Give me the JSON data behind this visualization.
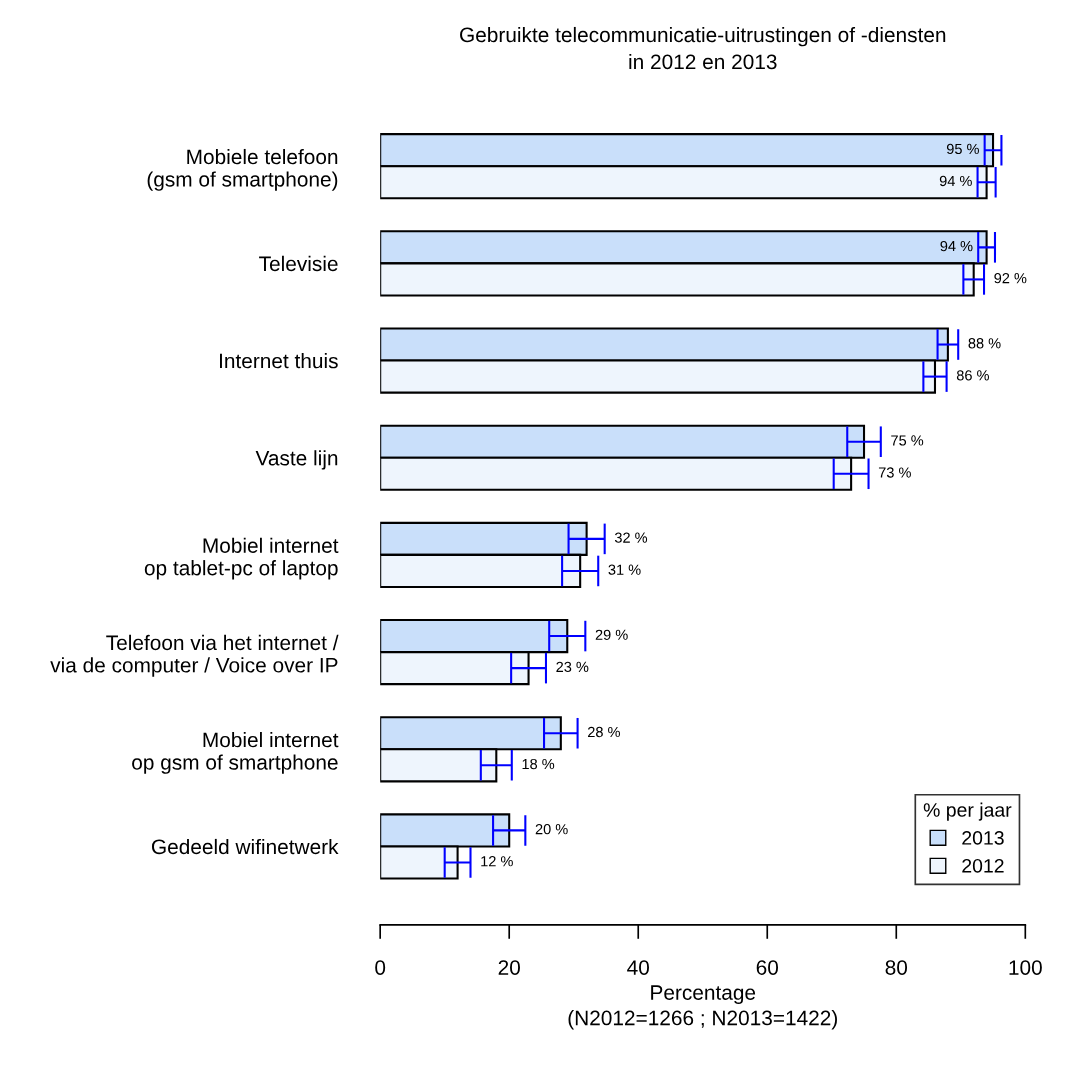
{
  "chart_data": {
    "type": "bar",
    "orientation": "horizontal",
    "title": "Gebruikte telecommunicatie-uitrustingen of -diensten\nin 2012 en 2013",
    "xlabel": "Percentage\n(N2012=1266 ; N2013=1422)",
    "categories": [
      "Mobiele telefoon\n(gsm of smartphone)",
      "Televisie",
      "Internet thuis",
      "Vaste lijn",
      "Mobiel internet\nop tablet-pc of laptop",
      "Telefoon via het internet /\nvia de computer / Voice over IP",
      "Mobiel internet\nop gsm of smartphone",
      "Gedeeld wifinetwerk"
    ],
    "series": [
      {
        "name": "2013",
        "color": "#c9dffa",
        "values": [
          95,
          94,
          88,
          75,
          32,
          29,
          28,
          20
        ],
        "errors": [
          1.3,
          1.3,
          1.6,
          2.6,
          2.8,
          2.8,
          2.6,
          2.5
        ],
        "value_labels": [
          "95 %",
          "94 %",
          "88 %",
          "75 %",
          "32 %",
          "29 %",
          "28 %",
          "20 %"
        ]
      },
      {
        "name": "2012",
        "color": "#eef5fd",
        "values": [
          94,
          92,
          86,
          73,
          31,
          23,
          18,
          12
        ],
        "errors": [
          1.4,
          1.6,
          1.8,
          2.7,
          2.8,
          2.7,
          2.4,
          2.0
        ],
        "value_labels": [
          "94 %",
          "92 %",
          "86 %",
          "73 %",
          "31 %",
          "23 %",
          "18 %",
          "12 %"
        ]
      }
    ],
    "xlim": [
      0,
      100
    ],
    "xticks": [
      0,
      20,
      40,
      60,
      80,
      100
    ],
    "grid": false,
    "legend": "bottom right",
    "legend_title": "% per jaar"
  }
}
